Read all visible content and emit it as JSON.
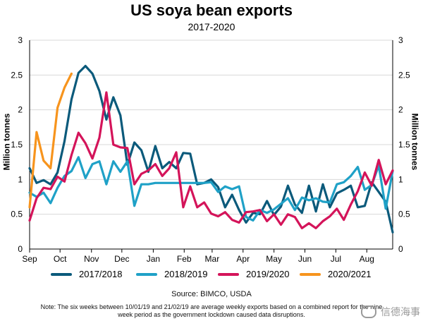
{
  "title": "US soya bean exports",
  "subtitle": "2017-2020",
  "ylabel": "Million tonnes",
  "source": "Source: BIMCO, USDA",
  "note": "Note: The six weeks between 10/01/19 and 21/02/19 are average weekly exports based on a combined report for the nine week period as the government lockdown caused data disruptions.",
  "watermark": "信德海事",
  "colors": {
    "2017/2018": "#0b5a7b",
    "2018/2019": "#1fa1c7",
    "2019/2020": "#d4145a",
    "2020/2021": "#f7941d"
  },
  "chart_data": {
    "type": "line",
    "title": "US soya bean exports",
    "subtitle": "2017-2020",
    "ylabel": "Million tonnes",
    "ylim": [
      0,
      3
    ],
    "yticks": [
      "0",
      "0.5",
      "1",
      "1.5",
      "2",
      "2.5",
      "3"
    ],
    "xlim": [
      0,
      52
    ],
    "xticks": [
      {
        "x": 0,
        "label": "Sep"
      },
      {
        "x": 4.36,
        "label": "Oct"
      },
      {
        "x": 8.86,
        "label": "Nov"
      },
      {
        "x": 13.21,
        "label": "Dec"
      },
      {
        "x": 17.71,
        "label": "Jan"
      },
      {
        "x": 22.14,
        "label": "Feb"
      },
      {
        "x": 26.14,
        "label": "Mar"
      },
      {
        "x": 30.57,
        "label": "Apr"
      },
      {
        "x": 35.0,
        "label": "May"
      },
      {
        "x": 39.43,
        "label": "Jun"
      },
      {
        "x": 43.86,
        "label": "Jul"
      },
      {
        "x": 48.29,
        "label": "Aug"
      }
    ],
    "grid": "horizontal",
    "series": [
      {
        "name": "2017/2018",
        "values": [
          [
            0,
            1.16
          ],
          [
            1,
            0.95
          ],
          [
            2,
            0.99
          ],
          [
            3,
            0.93
          ],
          [
            4,
            1.1
          ],
          [
            5,
            1.55
          ],
          [
            6,
            2.15
          ],
          [
            7,
            2.53
          ],
          [
            8,
            2.63
          ],
          [
            9,
            2.52
          ],
          [
            10,
            2.27
          ],
          [
            11,
            1.86
          ],
          [
            12,
            2.18
          ],
          [
            13,
            1.92
          ],
          [
            14,
            1.21
          ],
          [
            15,
            1.53
          ],
          [
            16,
            1.42
          ],
          [
            17,
            1.11
          ],
          [
            18,
            1.48
          ],
          [
            19,
            1.16
          ],
          [
            20,
            1.25
          ],
          [
            21,
            1.16
          ],
          [
            22,
            1.38
          ],
          [
            23,
            1.37
          ],
          [
            24,
            0.93
          ],
          [
            25,
            0.95
          ],
          [
            26,
            1.0
          ],
          [
            27,
            0.89
          ],
          [
            28,
            0.6
          ],
          [
            29,
            0.78
          ],
          [
            30,
            0.56
          ],
          [
            31,
            0.38
          ],
          [
            32,
            0.52
          ],
          [
            33,
            0.5
          ],
          [
            34,
            0.69
          ],
          [
            35,
            0.49
          ],
          [
            36,
            0.61
          ],
          [
            37,
            0.91
          ],
          [
            38,
            0.64
          ],
          [
            39,
            0.52
          ],
          [
            40,
            0.91
          ],
          [
            41,
            0.54
          ],
          [
            42,
            0.93
          ],
          [
            43,
            0.6
          ],
          [
            44,
            0.8
          ],
          [
            45,
            0.85
          ],
          [
            46,
            0.91
          ],
          [
            47,
            0.6
          ],
          [
            48,
            0.62
          ],
          [
            49,
            0.96
          ],
          [
            50,
            0.82
          ],
          [
            51,
            0.68
          ],
          [
            52,
            0.24
          ]
        ]
      },
      {
        "name": "2018/2019",
        "values": [
          [
            0,
            0.81
          ],
          [
            1,
            0.75
          ],
          [
            2,
            0.81
          ],
          [
            3,
            0.66
          ],
          [
            4,
            0.88
          ],
          [
            5,
            1.05
          ],
          [
            6,
            1.12
          ],
          [
            7,
            1.32
          ],
          [
            8,
            1.02
          ],
          [
            9,
            1.22
          ],
          [
            10,
            1.26
          ],
          [
            11,
            0.93
          ],
          [
            12,
            1.26
          ],
          [
            13,
            1.11
          ],
          [
            14,
            1.26
          ],
          [
            15,
            0.62
          ],
          [
            16,
            0.93
          ],
          [
            17,
            0.93
          ],
          [
            18,
            0.95
          ],
          [
            19,
            0.95
          ],
          [
            20,
            0.95
          ],
          [
            21,
            0.95
          ],
          [
            22,
            0.95
          ],
          [
            23,
            0.95
          ],
          [
            24,
            0.95
          ],
          [
            25,
            0.95
          ],
          [
            26,
            0.96
          ],
          [
            27,
            0.82
          ],
          [
            28,
            0.9
          ],
          [
            29,
            0.86
          ],
          [
            30,
            0.9
          ],
          [
            31,
            0.46
          ],
          [
            32,
            0.41
          ],
          [
            33,
            0.56
          ],
          [
            34,
            0.52
          ],
          [
            35,
            0.57
          ],
          [
            36,
            0.65
          ],
          [
            37,
            0.73
          ],
          [
            38,
            0.56
          ],
          [
            39,
            0.74
          ],
          [
            40,
            0.7
          ],
          [
            41,
            0.73
          ],
          [
            42,
            0.68
          ],
          [
            43,
            0.67
          ],
          [
            44,
            0.93
          ],
          [
            45,
            0.96
          ],
          [
            46,
            1.05
          ],
          [
            47,
            1.18
          ],
          [
            48,
            0.85
          ],
          [
            49,
            0.92
          ],
          [
            50,
            1.2
          ],
          [
            51,
            0.58
          ],
          [
            52,
            1.12
          ]
        ]
      },
      {
        "name": "2019/2020",
        "values": [
          [
            0,
            0.41
          ],
          [
            1,
            0.73
          ],
          [
            2,
            0.88
          ],
          [
            3,
            0.86
          ],
          [
            4,
            1.04
          ],
          [
            5,
            0.97
          ],
          [
            6,
            1.35
          ],
          [
            7,
            1.67
          ],
          [
            8,
            1.52
          ],
          [
            9,
            1.3
          ],
          [
            10,
            1.6
          ],
          [
            11,
            2.25
          ],
          [
            12,
            1.5
          ],
          [
            13,
            1.46
          ],
          [
            14,
            1.45
          ],
          [
            15,
            0.93
          ],
          [
            16,
            1.08
          ],
          [
            17,
            1.13
          ],
          [
            18,
            1.22
          ],
          [
            19,
            1.05
          ],
          [
            20,
            1.16
          ],
          [
            21,
            1.39
          ],
          [
            22,
            0.6
          ],
          [
            23,
            0.9
          ],
          [
            24,
            0.6
          ],
          [
            25,
            0.67
          ],
          [
            26,
            0.51
          ],
          [
            27,
            0.47
          ],
          [
            28,
            0.53
          ],
          [
            29,
            0.42
          ],
          [
            30,
            0.38
          ],
          [
            31,
            0.53
          ],
          [
            32,
            0.54
          ],
          [
            33,
            0.56
          ],
          [
            34,
            0.4
          ],
          [
            35,
            0.5
          ],
          [
            36,
            0.35
          ],
          [
            37,
            0.5
          ],
          [
            38,
            0.46
          ],
          [
            39,
            0.3
          ],
          [
            40,
            0.37
          ],
          [
            41,
            0.3
          ],
          [
            42,
            0.4
          ],
          [
            43,
            0.47
          ],
          [
            44,
            0.58
          ],
          [
            45,
            0.42
          ],
          [
            46,
            0.64
          ],
          [
            47,
            0.83
          ],
          [
            48,
            1.1
          ],
          [
            49,
            0.91
          ],
          [
            50,
            1.28
          ],
          [
            51,
            0.93
          ],
          [
            52,
            1.13
          ]
        ]
      },
      {
        "name": "2020/2021",
        "values": [
          [
            0,
            0.6
          ],
          [
            1,
            1.68
          ],
          [
            2,
            1.27
          ],
          [
            3,
            1.16
          ],
          [
            4,
            2.03
          ],
          [
            5,
            2.32
          ],
          [
            6,
            2.52
          ]
        ]
      }
    ]
  }
}
